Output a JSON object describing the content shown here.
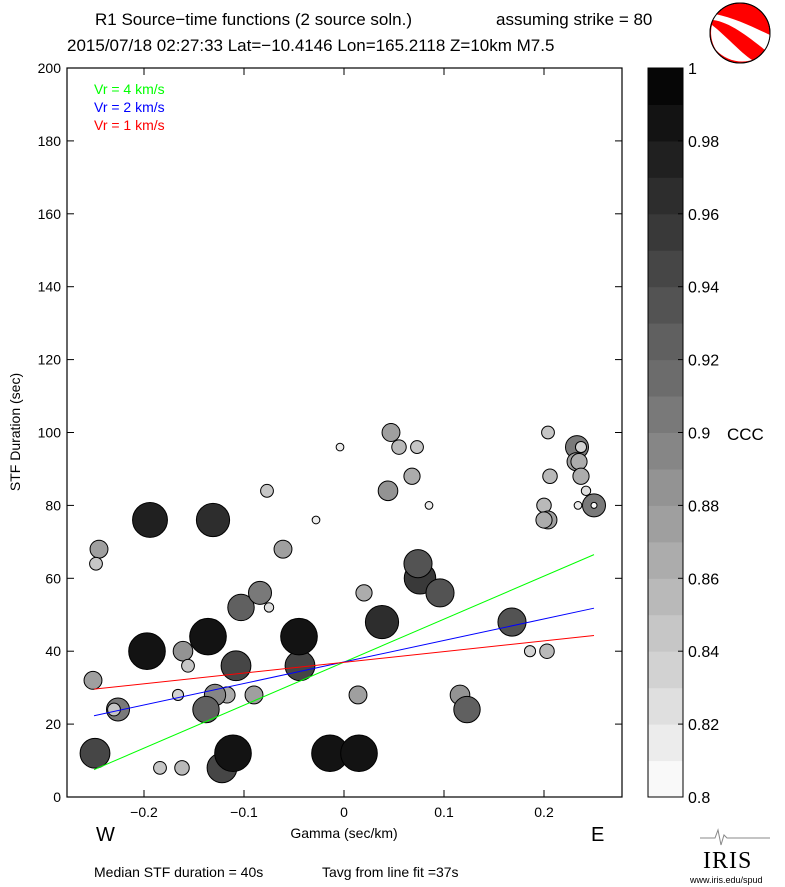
{
  "header": {
    "title": "R1 Source−time functions (2 source soln.)",
    "strike": "assuming strike = 80",
    "event": "2015/07/18 02:27:33  Lat=−10.4146 Lon=165.2118  Z=10km  M7.5"
  },
  "footer": {
    "median": "Median STF duration = 40s",
    "tavg": "Tavg from line fit =37s",
    "logo_text": "IRIS",
    "logo_url": "www.iris.edu/spud"
  },
  "chart_data": {
    "type": "scatter",
    "xlabel": "Gamma (sec/km)",
    "ylabel": "STF Duration (sec)",
    "xlim": [
      -0.277,
      0.278
    ],
    "ylim": [
      0,
      200
    ],
    "xticks": [
      -0.2,
      -0.1,
      0,
      0.1,
      0.2
    ],
    "xtick_labels": [
      "−0.2",
      "−0.1",
      "0",
      "0.1",
      "0.2"
    ],
    "yticks": [
      0,
      20,
      40,
      60,
      80,
      100,
      120,
      140,
      160,
      180,
      200
    ],
    "ytick_labels": [
      "0",
      "20",
      "40",
      "60",
      "80",
      "100",
      "120",
      "140",
      "160",
      "180",
      "200"
    ],
    "direction_labels": {
      "west": "W",
      "east": "E"
    },
    "grid": false,
    "colorbar": {
      "label": "CCC",
      "range": [
        0.8,
        1
      ],
      "ticks": [
        0.8,
        0.82,
        0.84,
        0.86,
        0.88,
        0.9,
        0.92,
        0.94,
        0.96,
        0.98,
        1
      ],
      "tick_labels": [
        "0.8",
        "0.82",
        "0.84",
        "0.86",
        "0.88",
        "0.9",
        "0.92",
        "0.94",
        "0.96",
        "0.98",
        "1"
      ]
    },
    "legend_position": "top-left",
    "lines": [
      {
        "name": "Vr = 4 km/s",
        "color": "#00ff00",
        "x": [
          -0.25,
          0.25
        ],
        "y": [
          7.5,
          66.5
        ]
      },
      {
        "name": "Vr = 2 km/s",
        "color": "#0000ff",
        "x": [
          -0.25,
          0.25
        ],
        "y": [
          22.3,
          51.8
        ]
      },
      {
        "name": "Vr = 1 km/s",
        "color": "#ff0000",
        "x": [
          -0.25,
          0.25
        ],
        "y": [
          29.6,
          44.3
        ]
      }
    ],
    "points": [
      {
        "x": -0.249,
        "y": 12,
        "ccc": 0.94
      },
      {
        "x": -0.251,
        "y": 32,
        "ccc": 0.87
      },
      {
        "x": -0.245,
        "y": 68,
        "ccc": 0.87
      },
      {
        "x": -0.248,
        "y": 64,
        "ccc": 0.84
      },
      {
        "x": -0.194,
        "y": 76,
        "ccc": 0.97
      },
      {
        "x": -0.131,
        "y": 76,
        "ccc": 0.96
      },
      {
        "x": -0.197,
        "y": 40,
        "ccc": 0.98
      },
      {
        "x": -0.136,
        "y": 44,
        "ccc": 0.98
      },
      {
        "x": -0.161,
        "y": 40,
        "ccc": 0.88
      },
      {
        "x": -0.156,
        "y": 36,
        "ccc": 0.84
      },
      {
        "x": -0.226,
        "y": 24,
        "ccc": 0.9
      },
      {
        "x": -0.23,
        "y": 24,
        "ccc": 0.84
      },
      {
        "x": -0.166,
        "y": 28,
        "ccc": 0.83
      },
      {
        "x": -0.117,
        "y": 28,
        "ccc": 0.86
      },
      {
        "x": -0.129,
        "y": 28,
        "ccc": 0.89
      },
      {
        "x": -0.138,
        "y": 24,
        "ccc": 0.92
      },
      {
        "x": -0.184,
        "y": 8,
        "ccc": 0.84
      },
      {
        "x": -0.162,
        "y": 8,
        "ccc": 0.85
      },
      {
        "x": -0.122,
        "y": 8,
        "ccc": 0.94
      },
      {
        "x": -0.111,
        "y": 12,
        "ccc": 0.98
      },
      {
        "x": -0.108,
        "y": 36,
        "ccc": 0.94
      },
      {
        "x": -0.103,
        "y": 52,
        "ccc": 0.92
      },
      {
        "x": -0.084,
        "y": 56,
        "ccc": 0.9
      },
      {
        "x": -0.075,
        "y": 52,
        "ccc": 0.82
      },
      {
        "x": -0.09,
        "y": 28,
        "ccc": 0.87
      },
      {
        "x": -0.077,
        "y": 84,
        "ccc": 0.84
      },
      {
        "x": -0.028,
        "y": 76,
        "ccc": 0.81
      },
      {
        "x": -0.061,
        "y": 68,
        "ccc": 0.87
      },
      {
        "x": -0.044,
        "y": 36,
        "ccc": 0.94
      },
      {
        "x": -0.045,
        "y": 44,
        "ccc": 0.98
      },
      {
        "x": -0.014,
        "y": 12,
        "ccc": 0.98
      },
      {
        "x": 0.015,
        "y": 12,
        "ccc": 0.98
      },
      {
        "x": 0.014,
        "y": 28,
        "ccc": 0.87
      },
      {
        "x": 0.02,
        "y": 56,
        "ccc": 0.86
      },
      {
        "x": 0.038,
        "y": 48,
        "ccc": 0.96
      },
      {
        "x": 0.076,
        "y": 60,
        "ccc": 0.95
      },
      {
        "x": 0.074,
        "y": 64,
        "ccc": 0.93
      },
      {
        "x": 0.096,
        "y": 56,
        "ccc": 0.93
      },
      {
        "x": 0.116,
        "y": 28,
        "ccc": 0.88
      },
      {
        "x": 0.123,
        "y": 24,
        "ccc": 0.92
      },
      {
        "x": 0.168,
        "y": 48,
        "ccc": 0.93
      },
      {
        "x": 0.186,
        "y": 40,
        "ccc": 0.83
      },
      {
        "x": 0.203,
        "y": 40,
        "ccc": 0.85
      },
      {
        "x": 0.047,
        "y": 100,
        "ccc": 0.87
      },
      {
        "x": 0.055,
        "y": 96,
        "ccc": 0.85
      },
      {
        "x": 0.073,
        "y": 96,
        "ccc": 0.84
      },
      {
        "x": 0.068,
        "y": 88,
        "ccc": 0.86
      },
      {
        "x": 0.044,
        "y": 84,
        "ccc": 0.88
      },
      {
        "x": 0.085,
        "y": 80,
        "ccc": 0.81
      },
      {
        "x": -0.004,
        "y": 96,
        "ccc": 0.81
      },
      {
        "x": 0.204,
        "y": 100,
        "ccc": 0.84
      },
      {
        "x": 0.233,
        "y": 96,
        "ccc": 0.9
      },
      {
        "x": 0.237,
        "y": 96,
        "ccc": 0.83
      },
      {
        "x": 0.232,
        "y": 92,
        "ccc": 0.87
      },
      {
        "x": 0.235,
        "y": 92,
        "ccc": 0.86
      },
      {
        "x": 0.206,
        "y": 88,
        "ccc": 0.85
      },
      {
        "x": 0.237,
        "y": 88,
        "ccc": 0.86
      },
      {
        "x": 0.242,
        "y": 84,
        "ccc": 0.82
      },
      {
        "x": 0.2,
        "y": 80,
        "ccc": 0.85
      },
      {
        "x": 0.234,
        "y": 80,
        "ccc": 0.81
      },
      {
        "x": 0.25,
        "y": 80,
        "ccc": 0.9
      },
      {
        "x": 0.25,
        "y": 80,
        "ccc": 0.8
      },
      {
        "x": 0.204,
        "y": 76,
        "ccc": 0.87
      },
      {
        "x": 0.2,
        "y": 76,
        "ccc": 0.86
      }
    ]
  },
  "beachball_colors": {
    "compression": "#ff0000",
    "dilatation": "#ffffff"
  }
}
